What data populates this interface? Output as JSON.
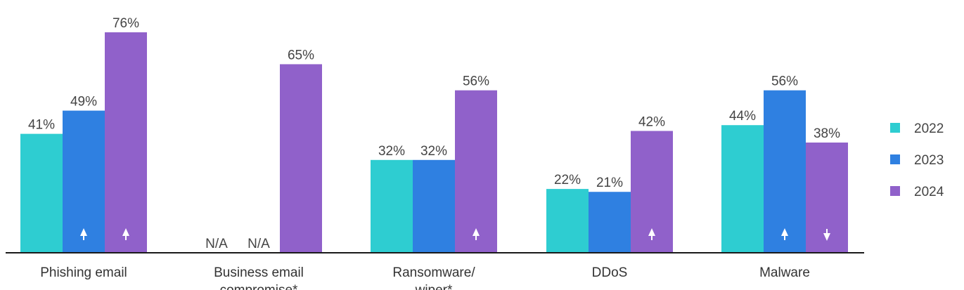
{
  "chart_data": {
    "type": "bar",
    "categories": [
      [
        "Phishing email"
      ],
      [
        "Business email",
        "compromise*"
      ],
      [
        "Ransomware/",
        "wiper*"
      ],
      [
        "DDoS"
      ],
      [
        "Malware"
      ]
    ],
    "series": [
      {
        "name": "2022",
        "color": "#2ECDD1",
        "values": [
          41,
          null,
          32,
          22,
          44
        ],
        "labels": [
          "41%",
          "N/A",
          "32%",
          "22%",
          "44%"
        ],
        "trend": [
          null,
          null,
          null,
          null,
          null
        ]
      },
      {
        "name": "2023",
        "color": "#2F80E1",
        "values": [
          49,
          null,
          32,
          21,
          56
        ],
        "labels": [
          "49%",
          "N/A",
          "32%",
          "21%",
          "56%"
        ],
        "trend": [
          "up",
          null,
          null,
          null,
          "up"
        ]
      },
      {
        "name": "2024",
        "color": "#9061CA",
        "values": [
          76,
          65,
          56,
          42,
          38
        ],
        "labels": [
          "76%",
          "65%",
          "56%",
          "42%",
          "38%"
        ],
        "trend": [
          "up",
          null,
          "up",
          "up",
          "down"
        ]
      }
    ],
    "ylim": [
      0,
      76
    ],
    "grid": false,
    "legend_position": "right",
    "title": "",
    "xlabel": "",
    "ylabel": ""
  }
}
